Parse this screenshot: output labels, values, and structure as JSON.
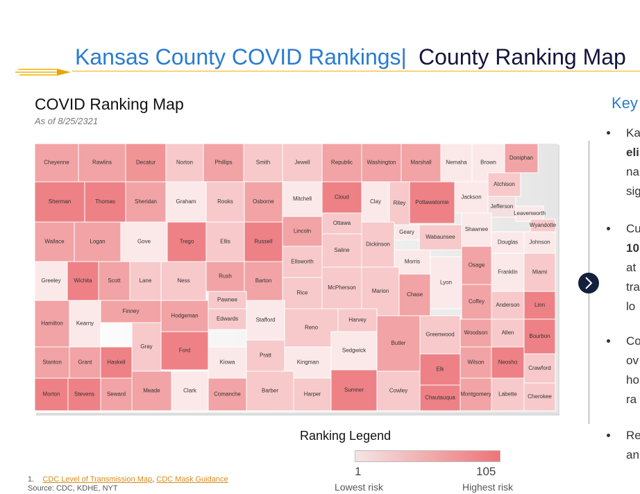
{
  "header": {
    "title": "Kansas County COVID Rankings|",
    "subtitle": "County Ranking Map"
  },
  "map": {
    "title": "COVID Ranking Map",
    "date": "As of 8/25/2321",
    "counties": [
      {
        "name": "Cheyenne",
        "color": "#f2a3a5"
      },
      {
        "name": "Rawlins",
        "color": "#f2a3a5"
      },
      {
        "name": "Decatur",
        "color": "#f09496"
      },
      {
        "name": "Norton",
        "color": "#f7c9ca"
      },
      {
        "name": "Phillips",
        "color": "#f2a3a5"
      },
      {
        "name": "Smith",
        "color": "#f7c9ca"
      },
      {
        "name": "Jewell",
        "color": "#f7c9ca"
      },
      {
        "name": "Republic",
        "color": "#f2a3a5"
      },
      {
        "name": "Washington",
        "color": "#f2a3a5"
      },
      {
        "name": "Marshall",
        "color": "#f2a3a5"
      },
      {
        "name": "Nemaha",
        "color": "#fbe9e9"
      },
      {
        "name": "Brown",
        "color": "#fbe9e9"
      },
      {
        "name": "Doniphan",
        "color": "#f2a3a5"
      },
      {
        "name": "Sherman",
        "color": "#ee8185"
      },
      {
        "name": "Thomas",
        "color": "#ee8185"
      },
      {
        "name": "Sheridan",
        "color": "#f2a3a5"
      },
      {
        "name": "Graham",
        "color": "#fbe9e9"
      },
      {
        "name": "Rooks",
        "color": "#f7c9ca"
      },
      {
        "name": "Osborne",
        "color": "#f2a3a5"
      },
      {
        "name": "Mitchell",
        "color": "#fbe9e9"
      },
      {
        "name": "Cloud",
        "color": "#ee8185"
      },
      {
        "name": "Clay",
        "color": "#fbe9e9"
      },
      {
        "name": "Riley",
        "color": "#f7c9ca"
      },
      {
        "name": "Pottawatomie",
        "color": "#ee8185"
      },
      {
        "name": "Jackson",
        "color": "#fbe9e9"
      },
      {
        "name": "Atchison",
        "color": "#f7c9ca"
      },
      {
        "name": "Jefferson",
        "color": "#f4e0e0"
      },
      {
        "name": "Leavenworth",
        "color": "#fbe9e9"
      },
      {
        "name": "Wyandotte",
        "color": "#f7c9ca"
      },
      {
        "name": "Wallace",
        "color": "#f2a3a5"
      },
      {
        "name": "Logan",
        "color": "#f2a3a5"
      },
      {
        "name": "Gove",
        "color": "#fbe9e9"
      },
      {
        "name": "Trego",
        "color": "#ee8185"
      },
      {
        "name": "Ellis",
        "color": "#f7c9ca"
      },
      {
        "name": "Russell",
        "color": "#ee8185"
      },
      {
        "name": "Lincoln",
        "color": "#f2a3a5"
      },
      {
        "name": "Ottawa",
        "color": "#f7c9ca"
      },
      {
        "name": "Dickinson",
        "color": "#f7c9ca"
      },
      {
        "name": "Geary",
        "color": "#fbe9e9"
      },
      {
        "name": "Wabaunsee",
        "color": "#f7c9ca"
      },
      {
        "name": "Shawnee",
        "color": "#fbe9e9"
      },
      {
        "name": "Douglas",
        "color": "#fbe9e9"
      },
      {
        "name": "Johnson",
        "color": "#fbe9e9"
      },
      {
        "name": "Greeley",
        "color": "#fbe9e9"
      },
      {
        "name": "Wichita",
        "color": "#ee8185"
      },
      {
        "name": "Scott",
        "color": "#f2a3a5"
      },
      {
        "name": "Lane",
        "color": "#f7c9ca"
      },
      {
        "name": "Ness",
        "color": "#f7c9ca"
      },
      {
        "name": "Rush",
        "color": "#f2a3a5"
      },
      {
        "name": "Barton",
        "color": "#f2a3a5"
      },
      {
        "name": "Ellsworth",
        "color": "#f7c9ca"
      },
      {
        "name": "Saline",
        "color": "#f7c9ca"
      },
      {
        "name": "Morris",
        "color": "#fbe9e9"
      },
      {
        "name": "Lyon",
        "color": "#fbe9e9"
      },
      {
        "name": "Osage",
        "color": "#f2a3a5"
      },
      {
        "name": "Franklin",
        "color": "#fbe9e9"
      },
      {
        "name": "Miami",
        "color": "#f7c9ca"
      },
      {
        "name": "Rice",
        "color": "#f7c9ca"
      },
      {
        "name": "McPherson",
        "color": "#f7c9ca"
      },
      {
        "name": "Marion",
        "color": "#f7c9ca"
      },
      {
        "name": "Chase",
        "color": "#f2a3a5"
      },
      {
        "name": "Coffey",
        "color": "#f2a3a5"
      },
      {
        "name": "Anderson",
        "color": "#f7c9ca"
      },
      {
        "name": "Linn",
        "color": "#ee8185"
      },
      {
        "name": "Hamilton",
        "color": "#f2a3a5"
      },
      {
        "name": "Kearny",
        "color": "#fbe9e9"
      },
      {
        "name": "Finney",
        "color": "#f2a3a5"
      },
      {
        "name": "Gray",
        "color": "#f7c9ca"
      },
      {
        "name": "Hodgeman",
        "color": "#f2a3a5"
      },
      {
        "name": "Pawnee",
        "color": "#f7c9ca"
      },
      {
        "name": "Edwards",
        "color": "#f7c9ca"
      },
      {
        "name": "Stafford",
        "color": "#fbe9e9"
      },
      {
        "name": "Reno",
        "color": "#f7c9ca"
      },
      {
        "name": "Harvey",
        "color": "#f7c9ca"
      },
      {
        "name": "Greenwood",
        "color": "#f7c9ca"
      },
      {
        "name": "Woodson",
        "color": "#f2a3a5"
      },
      {
        "name": "Allen",
        "color": "#f7c9ca"
      },
      {
        "name": "Bourbon",
        "color": "#ee8185"
      },
      {
        "name": "Ford",
        "color": "#ee8185"
      },
      {
        "name": "Kiowa",
        "color": "#fbe9e9"
      },
      {
        "name": "Pratt",
        "color": "#f7c9ca"
      },
      {
        "name": "Kingman",
        "color": "#fbe9e9"
      },
      {
        "name": "Sedgwick",
        "color": "#fbe9e9"
      },
      {
        "name": "Butler",
        "color": "#f2a3a5"
      },
      {
        "name": "Elk",
        "color": "#ee8185"
      },
      {
        "name": "Wilson",
        "color": "#f2a3a5"
      },
      {
        "name": "Neosho",
        "color": "#ee8185"
      },
      {
        "name": "Crawford",
        "color": "#f7c9ca"
      },
      {
        "name": "Stanton",
        "color": "#f2a3a5"
      },
      {
        "name": "Grant",
        "color": "#f2a3a5"
      },
      {
        "name": "Haskell",
        "color": "#ee8185"
      },
      {
        "name": "Morton",
        "color": "#ee8185"
      },
      {
        "name": "Stevens",
        "color": "#ee8185"
      },
      {
        "name": "Seward",
        "color": "#f2a3a5"
      },
      {
        "name": "Meade",
        "color": "#f2a3a5"
      },
      {
        "name": "Clark",
        "color": "#fbe9e9"
      },
      {
        "name": "Comanche",
        "color": "#f2a3a5"
      },
      {
        "name": "Barber",
        "color": "#f7c9ca"
      },
      {
        "name": "Harper",
        "color": "#f7c9ca"
      },
      {
        "name": "Sumner",
        "color": "#ee8185"
      },
      {
        "name": "Cowley",
        "color": "#f7c9ca"
      },
      {
        "name": "Chautauqua",
        "color": "#ee8185"
      },
      {
        "name": "Montgomery",
        "color": "#f2a3a5"
      },
      {
        "name": "Labette",
        "color": "#f7c9ca"
      },
      {
        "name": "Cherokee",
        "color": "#f7c9ca"
      }
    ]
  },
  "legend": {
    "title": "Ranking Legend",
    "min": 1,
    "max": 105,
    "min_label": "Lowest risk",
    "max_label": "Highest risk",
    "min_color": "#f4e4e4",
    "max_color": "#ee7479"
  },
  "footnote": {
    "number": "1.",
    "link1": "CDC Level of Transmission Map",
    "separator": ", ",
    "link2": "CDC Mask Guidance",
    "source": "Source: CDC, KDHE, NYT"
  },
  "key": {
    "title": "Key",
    "bullets": [
      [
        "Ka",
        "eli",
        "na",
        "sig"
      ],
      [
        "Cu",
        "10",
        "at",
        "tra",
        "lo"
      ],
      [
        "Co",
        "ov",
        "ho",
        "ra"
      ],
      [
        "Re",
        "an"
      ]
    ]
  }
}
